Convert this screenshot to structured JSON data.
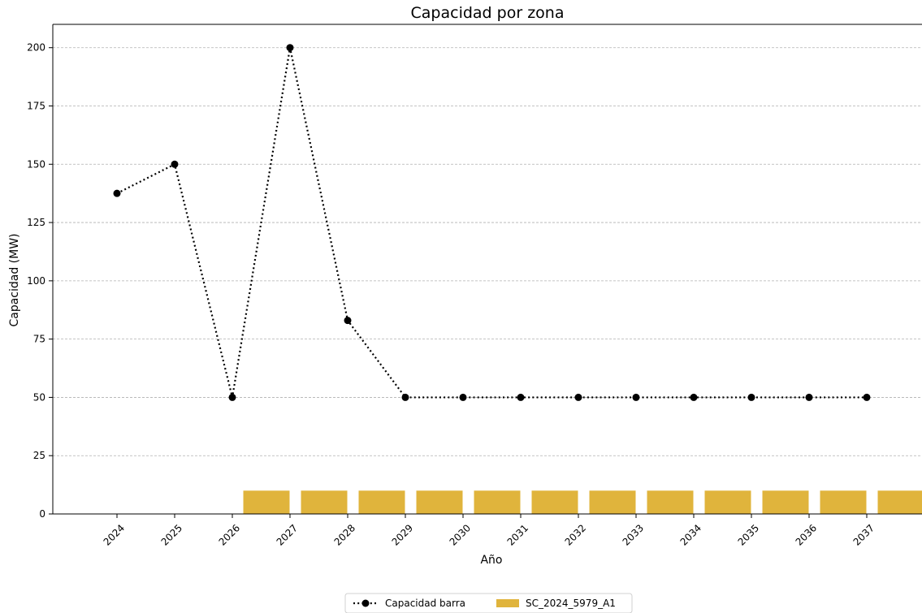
{
  "chart_data": {
    "type": "bar+line",
    "title": "Capacidad por zona",
    "xlabel": "Año",
    "ylabel": "Capacidad (MW)",
    "ylim": [
      0,
      210
    ],
    "yticks": [
      0,
      25,
      50,
      75,
      100,
      125,
      150,
      175,
      200
    ],
    "grid": "horizontal-dashed",
    "legend_placement": "bottom-center",
    "categories": [
      "2024",
      "2025",
      "2026",
      "2027",
      "2028",
      "2029",
      "2030",
      "2031",
      "2032",
      "2033",
      "2034",
      "2035",
      "2036",
      "2037"
    ],
    "series": [
      {
        "name": "Capacidad barra",
        "type": "line",
        "style": "dotted-with-circle-markers",
        "color": "#000000",
        "values": [
          137.5,
          150,
          50,
          200,
          83,
          50,
          50,
          50,
          50,
          50,
          50,
          50,
          50,
          50
        ]
      },
      {
        "name": "SC_2024_5979_A1",
        "type": "bar",
        "color": "#E0B43C",
        "values": [
          0,
          0,
          10,
          10,
          10,
          10,
          10,
          10,
          10,
          10,
          10,
          10,
          10,
          10
        ]
      }
    ]
  }
}
